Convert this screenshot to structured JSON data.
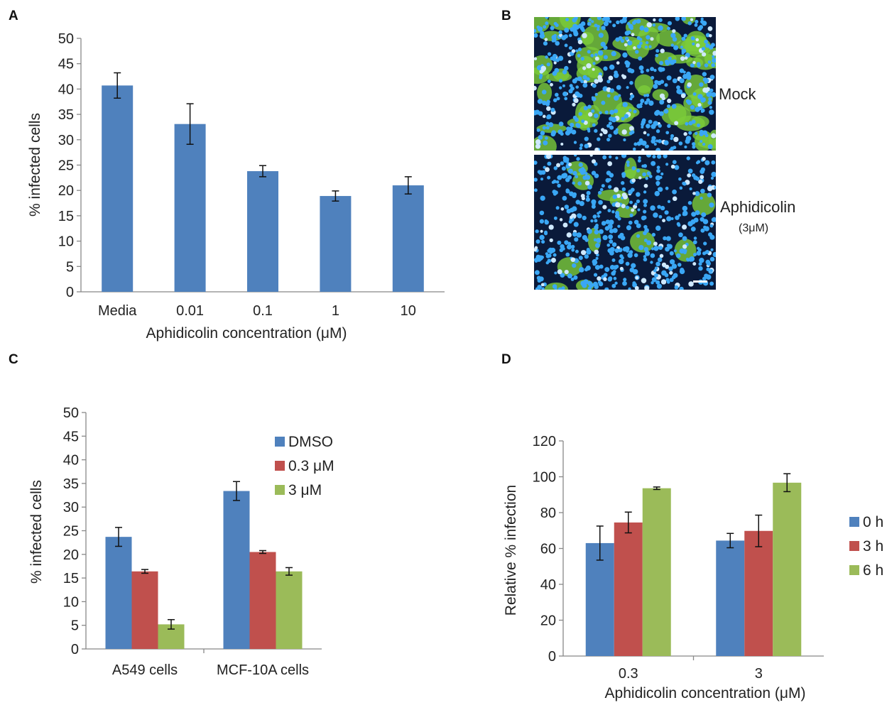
{
  "panels": {
    "a": "A",
    "b": "B",
    "c": "C",
    "d": "D"
  },
  "colors": {
    "blue": "#4f81bd",
    "red": "#c0504d",
    "green": "#9bbb59",
    "micro_bg": "#0a1a3a",
    "nuclei": "#3aa7f5",
    "infected": "#7ccc3a"
  },
  "micrograph": {
    "top_label": "Mock",
    "bottom_label": "Aphidicolin",
    "bottom_sublabel": "(3μM)"
  },
  "chart_data": [
    {
      "id": "A",
      "type": "bar",
      "categories": [
        "Media",
        "0.01",
        "0.1",
        "1",
        "10"
      ],
      "series": [
        {
          "values": [
            40.7,
            33.1,
            23.8,
            18.9,
            21.0
          ],
          "errors": [
            2.5,
            4.0,
            1.1,
            1.0,
            1.7
          ]
        }
      ],
      "xlabel": "Aphidicolin concentration (μM)",
      "ylabel": "% infected cells",
      "ylim": [
        0,
        50
      ],
      "yticks": [
        0,
        5,
        10,
        15,
        20,
        25,
        30,
        35,
        40,
        45,
        50
      ],
      "grid": false
    },
    {
      "id": "C",
      "type": "bar",
      "categories": [
        "A549 cells",
        "MCF-10A cells"
      ],
      "series": [
        {
          "name": "DMSO",
          "values": [
            23.7,
            33.4
          ],
          "errors": [
            2.0,
            2.0
          ]
        },
        {
          "name": "0.3 μM",
          "values": [
            16.4,
            20.5
          ],
          "errors": [
            0.4,
            0.3
          ]
        },
        {
          "name": "3 μM",
          "values": [
            5.2,
            16.4
          ],
          "errors": [
            1.0,
            0.8
          ]
        }
      ],
      "xlabel": "",
      "ylabel": "% infected cells",
      "ylim": [
        0,
        50
      ],
      "yticks": [
        0,
        5,
        10,
        15,
        20,
        25,
        30,
        35,
        40,
        45,
        50
      ],
      "legend": "top-right",
      "grid": false
    },
    {
      "id": "D",
      "type": "bar",
      "categories": [
        "0.3",
        "3"
      ],
      "series": [
        {
          "name": "0 h",
          "values": [
            63.0,
            64.4
          ],
          "errors": [
            9.5,
            4.0
          ]
        },
        {
          "name": "3 h",
          "values": [
            74.5,
            69.8
          ],
          "errors": [
            5.8,
            8.8
          ]
        },
        {
          "name": "6 h",
          "values": [
            93.6,
            96.7
          ],
          "errors": [
            0.7,
            5.0
          ]
        }
      ],
      "xlabel": "Aphidicolin concentration (μM)",
      "ylabel": "Relative % infection",
      "ylim": [
        0,
        120
      ],
      "yticks": [
        0,
        20,
        40,
        60,
        80,
        100,
        120
      ],
      "legend": "right",
      "grid": false
    }
  ]
}
